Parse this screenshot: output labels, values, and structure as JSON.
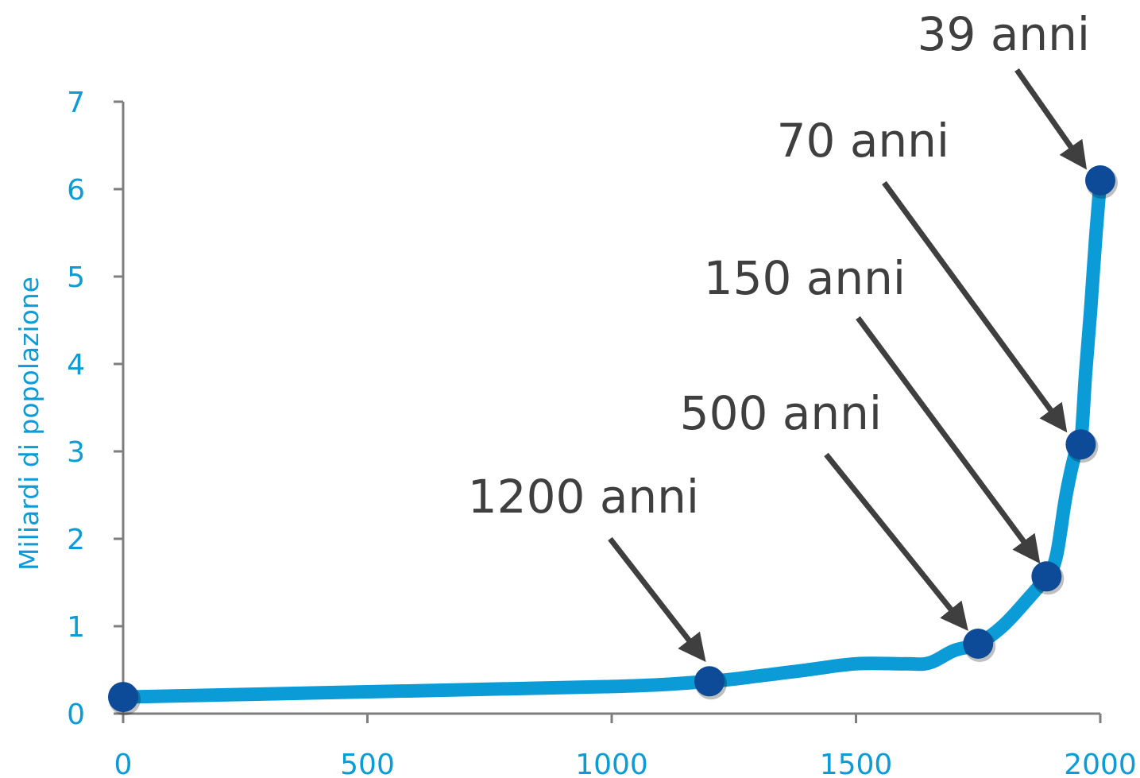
{
  "chart_data": {
    "type": "line",
    "title": "",
    "xlabel": "",
    "ylabel": "Miliardi di popolazione",
    "xlim": [
      0,
      2000
    ],
    "ylim": [
      0,
      7
    ],
    "xticks": [
      "0",
      "500",
      "1000",
      "1500",
      "2000"
    ],
    "yticks": [
      "0",
      "1",
      "2",
      "3",
      "4",
      "5",
      "6",
      "7"
    ],
    "grid": false,
    "series": [
      {
        "name": "",
        "x": [
          0,
          500,
          1000,
          1200,
          1300,
          1400,
          1500,
          1600,
          1650,
          1700,
          1750,
          1800,
          1850,
          1890,
          1910,
          1930,
          1950,
          1960,
          1970,
          1980,
          1990,
          2000
        ],
        "y": [
          0.19,
          0.25,
          0.31,
          0.37,
          0.43,
          0.5,
          0.57,
          0.57,
          0.58,
          0.72,
          0.8,
          1.0,
          1.3,
          1.57,
          1.8,
          2.5,
          3.0,
          3.08,
          3.9,
          4.6,
          5.4,
          6.1
        ]
      }
    ],
    "markers": [
      {
        "x": 0,
        "y": 0.19
      },
      {
        "x": 1200,
        "y": 0.37
      },
      {
        "x": 1750,
        "y": 0.8
      },
      {
        "x": 1890,
        "y": 1.57
      },
      {
        "x": 1960,
        "y": 3.08
      },
      {
        "x": 2000,
        "y": 6.1
      }
    ],
    "annotations": [
      {
        "text": "1200 anni",
        "target": {
          "x": 1200,
          "y": 0.37
        }
      },
      {
        "text": "500 anni",
        "target": {
          "x": 1750,
          "y": 0.8
        }
      },
      {
        "text": "150 anni",
        "target": {
          "x": 1890,
          "y": 1.57
        }
      },
      {
        "text": "70 anni",
        "target": {
          "x": 1960,
          "y": 3.08
        }
      },
      {
        "text": "39 anni",
        "target": {
          "x": 2000,
          "y": 6.1
        }
      }
    ]
  },
  "colors": {
    "line": "#0b9bd7",
    "marker": "#0d4a97",
    "axis": "#7f7f7f",
    "tick_text": "#0b9bd7",
    "annotation_text": "#3f3f3f",
    "arrow": "#3f3f3f"
  }
}
